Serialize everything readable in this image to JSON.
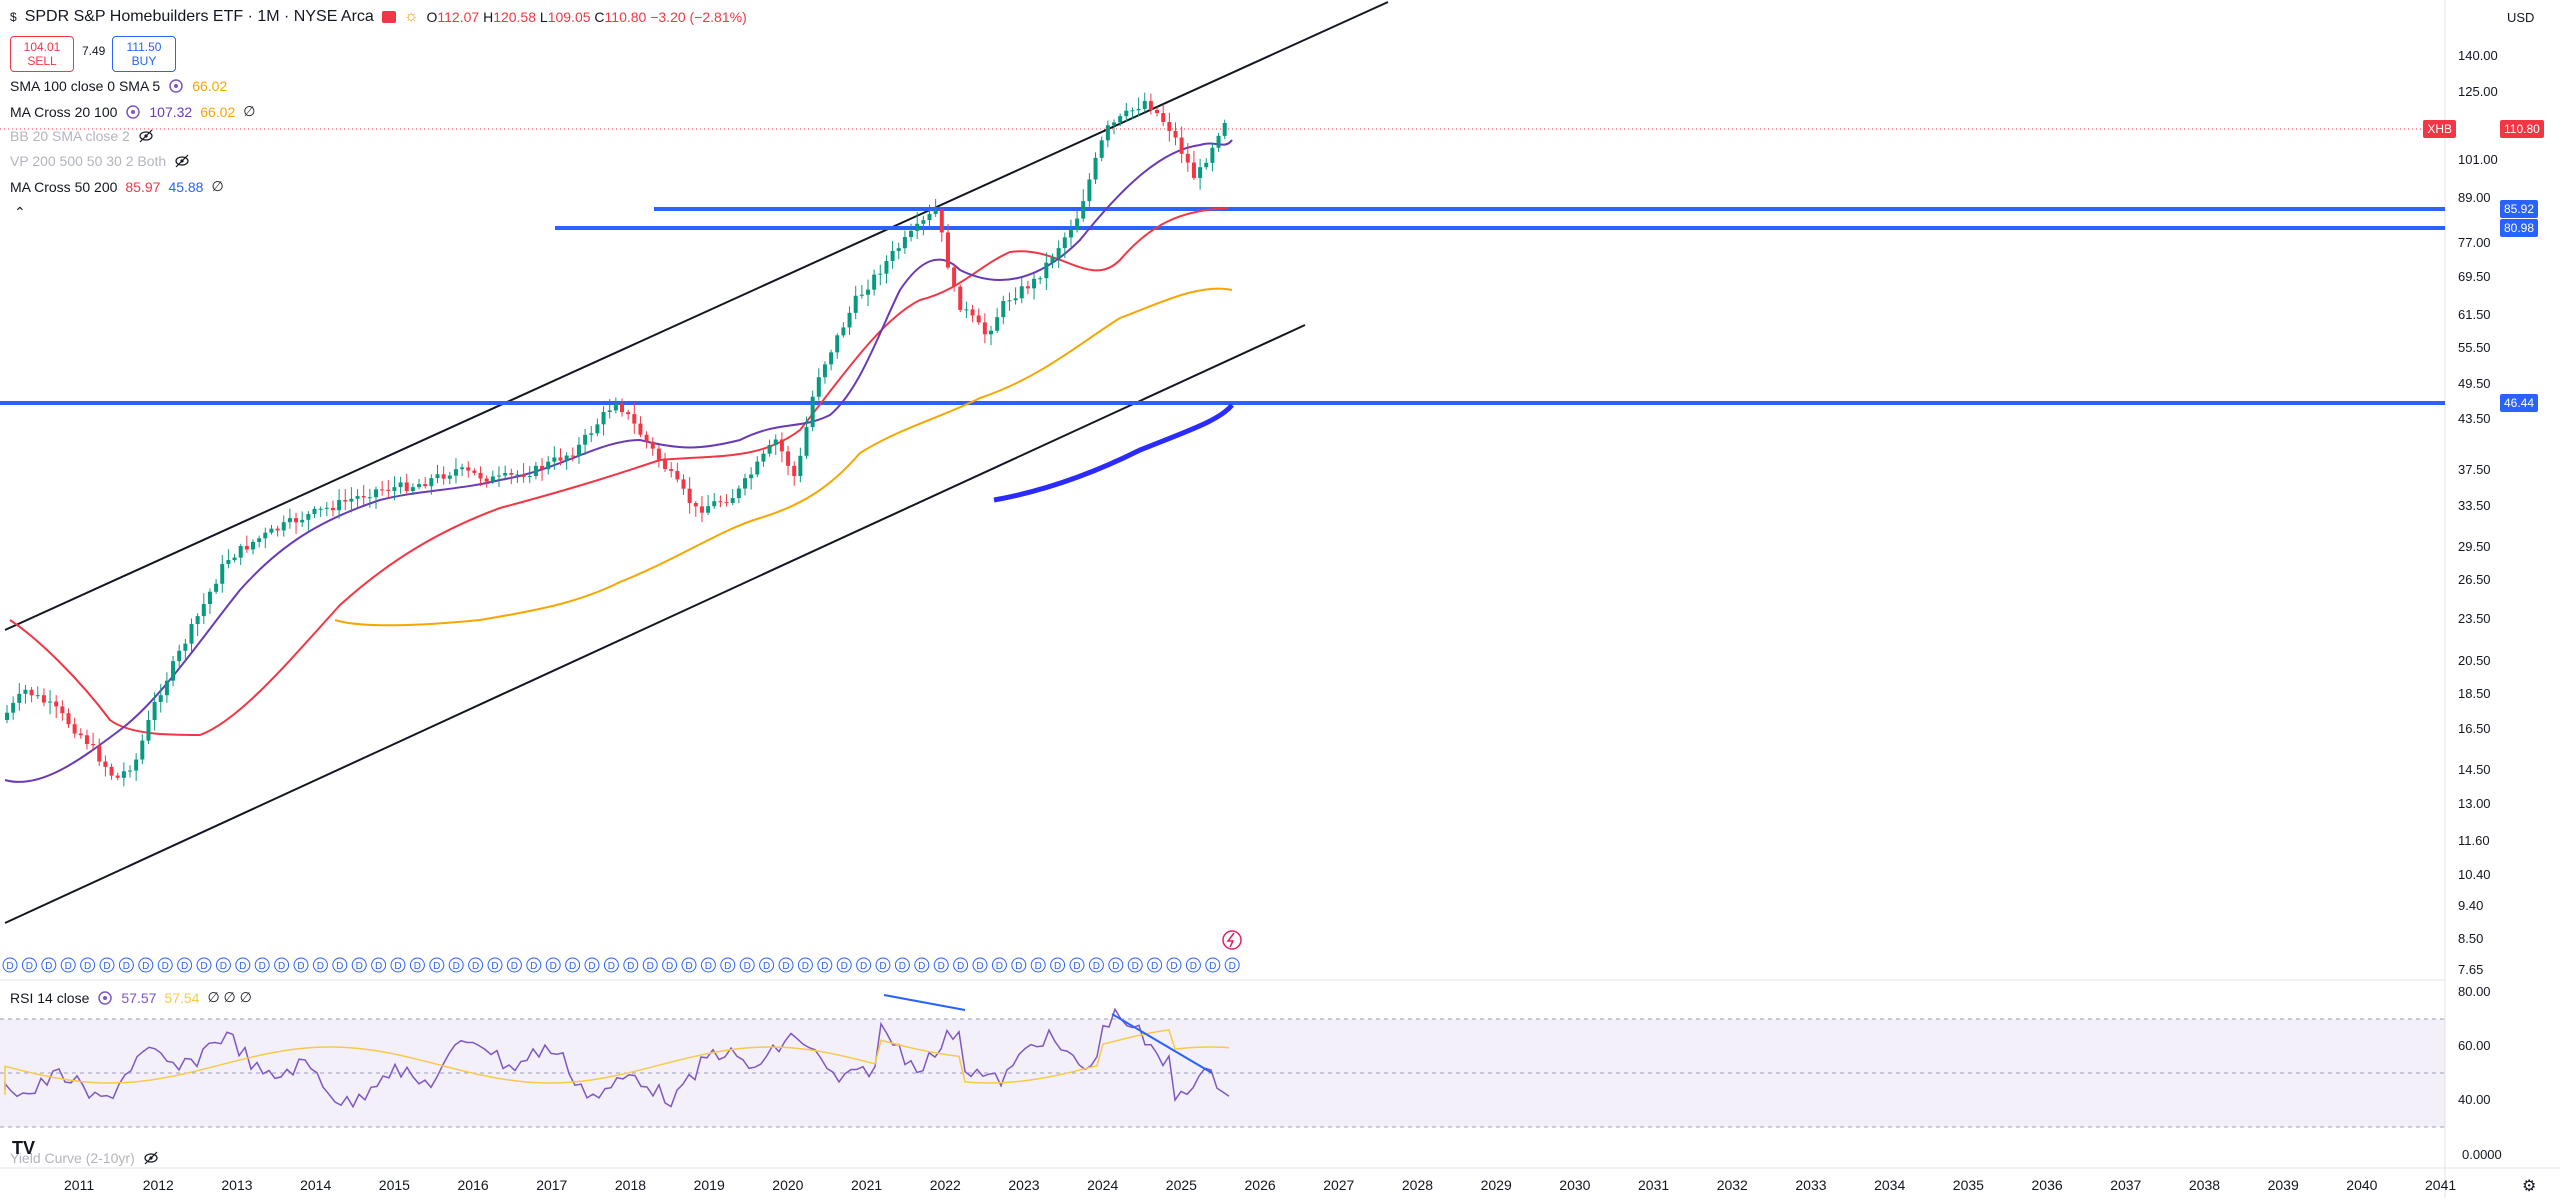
{
  "header": {
    "symbol_title": "SPDR S&P Homebuilders ETF · 1M · NYSE Arca",
    "o_label": "O",
    "o_value": "112.07",
    "h_label": "H",
    "h_value": "120.58",
    "l_label": "L",
    "l_value": "109.05",
    "c_label": "C",
    "c_value": "110.80",
    "change": "−3.20 (−2.81%)",
    "currency": "USD"
  },
  "trade": {
    "sell_price": "104.01",
    "sell_label": "SELL",
    "spread": "7.49",
    "buy_price": "111.50",
    "buy_label": "BUY"
  },
  "indicators": [
    {
      "name": "SMA 100 close 0 SMA 5",
      "v1": "66.02",
      "v1_color": "#f7a600",
      "v2": "",
      "v2_color": "",
      "v3": "",
      "muted": false
    },
    {
      "name": "MA Cross 20 100",
      "v1": "107.32",
      "v1_color": "#673ab7",
      "v2": "66.02",
      "v2_color": "#f7a600",
      "v3": "∅",
      "muted": false
    },
    {
      "name": "BB 20 SMA close 2",
      "v1": "",
      "v2": "",
      "v3": "",
      "muted": true
    },
    {
      "name": "VP 200 500 50 30 2 Both",
      "v1": "",
      "v2": "",
      "v3": "",
      "muted": true
    },
    {
      "name": "MA Cross 50 200",
      "v1": "85.97",
      "v1_color": "#f23645",
      "v2": "45.88",
      "v2_color": "#2962ff",
      "v3": "∅",
      "muted": false
    }
  ],
  "rsi_legend": {
    "name": "RSI 14 close",
    "v1": "57.57",
    "v2": "57.54",
    "v3": "∅ ∅ ∅"
  },
  "yield_legend": {
    "name": "Yield Curve (2-10yr)"
  },
  "price_axis": [
    "140.00",
    "125.00",
    "101.00",
    "89.00",
    "77.00",
    "69.50",
    "61.50",
    "55.50",
    "49.50",
    "43.50",
    "37.50",
    "33.50",
    "29.50",
    "26.50",
    "23.50",
    "20.50",
    "18.50",
    "16.50",
    "14.50",
    "13.00",
    "11.60",
    "10.40",
    "9.40",
    "8.50",
    "7.65"
  ],
  "price_tags": [
    {
      "symbol": "XHB",
      "value": "110.80",
      "color": "#f23645"
    },
    {
      "value": "85.92",
      "color": "#2962ff"
    },
    {
      "value": "80.98",
      "color": "#2962ff"
    },
    {
      "value": "46.44",
      "color": "#2962ff"
    }
  ],
  "rsi_axis": [
    "80.00",
    "60.00",
    "40.00"
  ],
  "yield_axis": [
    "0.0000"
  ],
  "years": [
    "2011",
    "2012",
    "2013",
    "2014",
    "2015",
    "2016",
    "2017",
    "2018",
    "2019",
    "2020",
    "2021",
    "2022",
    "2023",
    "2024",
    "2025",
    "2026",
    "2027",
    "2028",
    "2029",
    "2030",
    "2031",
    "2032",
    "2033",
    "2034",
    "2035",
    "2036",
    "2037",
    "2038",
    "2039",
    "2040",
    "2041"
  ],
  "dividend_marker": "D",
  "colors": {
    "up": "#089981",
    "down": "#f23645",
    "hline": "#2962ff",
    "ma20": "#673ab7",
    "ma50": "#f23645",
    "ma100": "#f7a600"
  }
}
